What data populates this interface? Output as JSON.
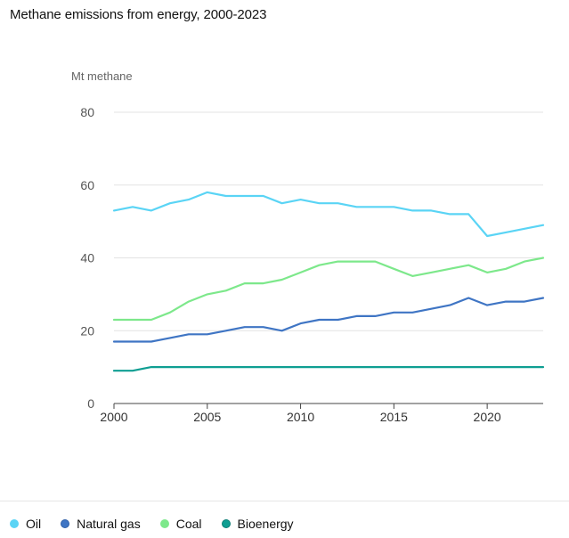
{
  "title": "Methane emissions from energy, 2000-2023",
  "chart_data": {
    "type": "line",
    "title": "Methane emissions from energy, 2000-2023",
    "ylabel": "Mt methane",
    "xlabel": "",
    "ylim": [
      0,
      80
    ],
    "xlim": [
      2000,
      2023
    ],
    "yticks": [
      0,
      20,
      40,
      60,
      80
    ],
    "xticks": [
      2000,
      2005,
      2010,
      2015,
      2020
    ],
    "grid": true,
    "legend_position": "bottom-left",
    "x": [
      2000,
      2001,
      2002,
      2003,
      2004,
      2005,
      2006,
      2007,
      2008,
      2009,
      2010,
      2011,
      2012,
      2013,
      2014,
      2015,
      2016,
      2017,
      2018,
      2019,
      2020,
      2021,
      2022,
      2023
    ],
    "series": [
      {
        "name": "Oil",
        "color": "#5ad4f5",
        "values": [
          53,
          54,
          53,
          55,
          56,
          58,
          57,
          57,
          57,
          55,
          56,
          55,
          55,
          54,
          54,
          54,
          53,
          53,
          52,
          52,
          46,
          47,
          48,
          49
        ]
      },
      {
        "name": "Natural gas",
        "color": "#3f75c4",
        "values": [
          17,
          17,
          17,
          18,
          19,
          19,
          20,
          21,
          21,
          20,
          22,
          23,
          23,
          24,
          24,
          25,
          25,
          26,
          27,
          29,
          27,
          28,
          28,
          29
        ]
      },
      {
        "name": "Coal",
        "color": "#7de88b",
        "values": [
          23,
          23,
          23,
          25,
          28,
          30,
          31,
          33,
          33,
          34,
          36,
          38,
          39,
          39,
          39,
          37,
          35,
          36,
          37,
          38,
          36,
          37,
          39,
          40
        ]
      },
      {
        "name": "Bioenergy",
        "color": "#0f9e92",
        "values": [
          9,
          9,
          10,
          10,
          10,
          10,
          10,
          10,
          10,
          10,
          10,
          10,
          10,
          10,
          10,
          10,
          10,
          10,
          10,
          10,
          10,
          10,
          10,
          10
        ]
      }
    ]
  }
}
